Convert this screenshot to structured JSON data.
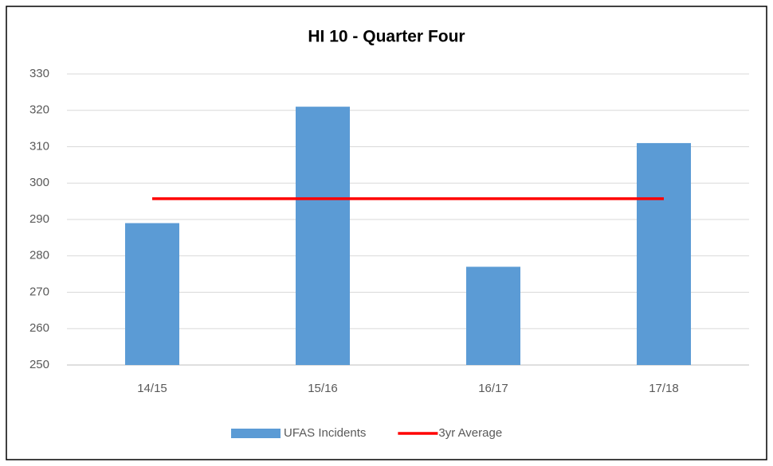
{
  "chart_data": {
    "type": "bar",
    "title": "HI 10 - Quarter Four",
    "categories": [
      "14/15",
      "15/16",
      "16/17",
      "17/18"
    ],
    "series": [
      {
        "name": "UFAS Incidents",
        "type": "bar",
        "color": "#5b9bd5",
        "values": [
          289,
          321,
          277,
          311
        ]
      },
      {
        "name": "3yr Average",
        "type": "line",
        "color": "#ff0000",
        "values": [
          295.7,
          295.7,
          295.7,
          295.7
        ]
      }
    ],
    "ylim": [
      250,
      330
    ],
    "yticks": [
      250,
      260,
      270,
      280,
      290,
      300,
      310,
      320,
      330
    ],
    "grid": true,
    "legend": "bottom"
  }
}
